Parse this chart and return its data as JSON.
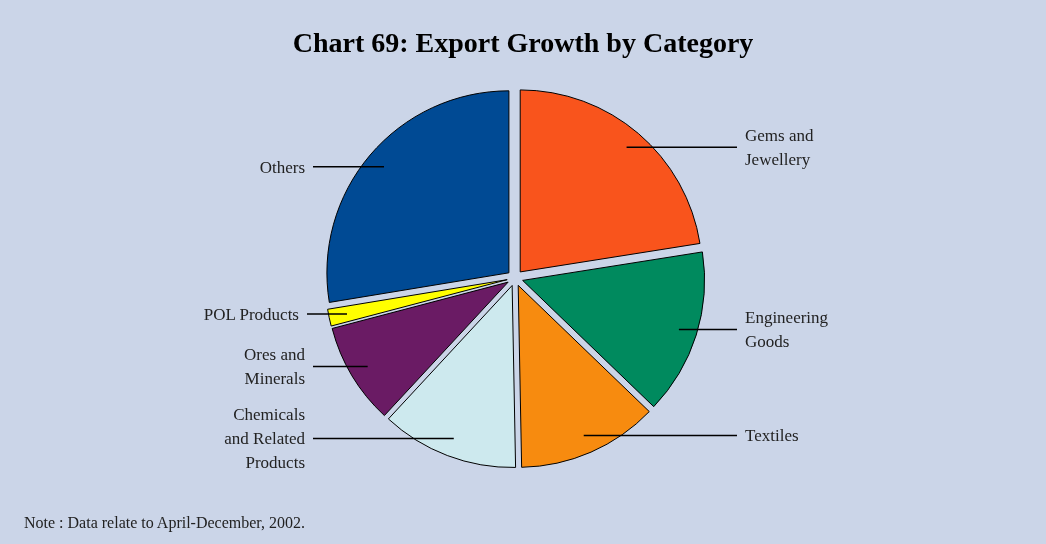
{
  "chart_data": {
    "type": "pie",
    "title": "Chart 69: Export Growth by Category",
    "categories": [
      "Gems and Jewellery",
      "Engineering Goods",
      "Textiles",
      "Chemicals and Related Products",
      "Ores and Minerals",
      "POL Products",
      "Others"
    ],
    "values": [
      22.5,
      14.7,
      12.5,
      12.2,
      9,
      1.5,
      27.6
    ],
    "colors": [
      "#f9541c",
      "#008a5e",
      "#f78b0f",
      "#cde9ee",
      "#6a1b64",
      "#ffff00",
      "#004a94"
    ],
    "annotations": [
      "Note : Data relate to April-December, 2002."
    ]
  }
}
